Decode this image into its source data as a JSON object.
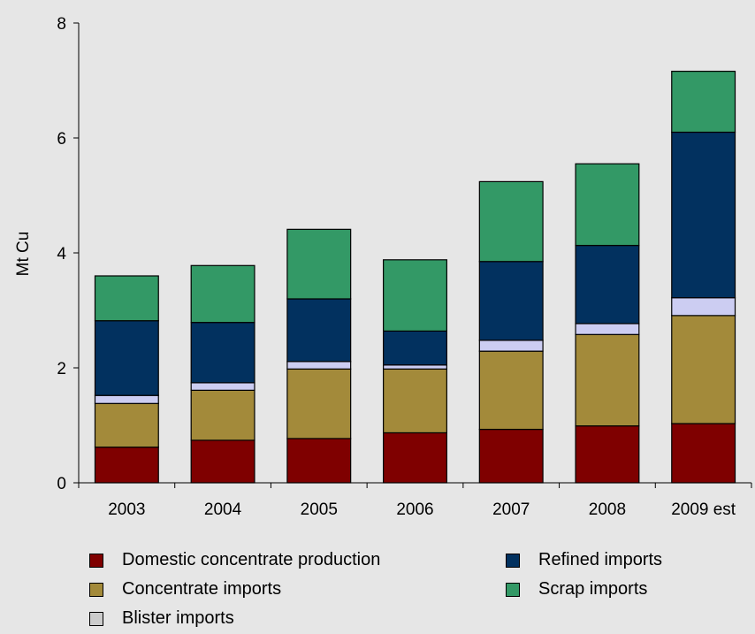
{
  "chart_data": {
    "type": "bar",
    "stacked": true,
    "title": "",
    "xlabel": "",
    "ylabel": "Mt Cu",
    "ylim": [
      0,
      8
    ],
    "yticks": [
      0,
      2,
      4,
      6,
      8
    ],
    "grid": false,
    "legend_position": "bottom",
    "categories": [
      "2003",
      "2004",
      "2005",
      "2006",
      "2007",
      "2008",
      "2009 est"
    ],
    "series": [
      {
        "name": "Domestic concentrate production",
        "color": "#7f0000",
        "values": [
          0.62,
          0.74,
          0.77,
          0.87,
          0.93,
          0.99,
          1.03
        ]
      },
      {
        "name": "Concentrate imports",
        "color": "#a38a3a",
        "values": [
          0.76,
          0.87,
          1.21,
          1.11,
          1.36,
          1.59,
          1.88
        ]
      },
      {
        "name": "Blister imports",
        "color": "#cccdf2",
        "values": [
          0.14,
          0.13,
          0.13,
          0.07,
          0.19,
          0.19,
          0.31
        ]
      },
      {
        "name": "Refined imports",
        "color": "#02315f",
        "values": [
          1.3,
          1.05,
          1.09,
          0.59,
          1.37,
          1.36,
          2.88
        ]
      },
      {
        "name": "Scrap imports",
        "color": "#339966",
        "values": [
          0.78,
          0.99,
          1.21,
          1.24,
          1.39,
          1.42,
          1.06
        ]
      }
    ]
  }
}
